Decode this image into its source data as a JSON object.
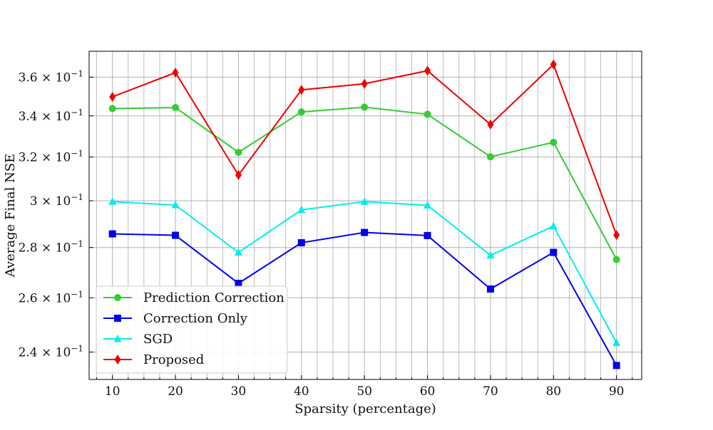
{
  "chart_data": {
    "type": "line",
    "title": "",
    "xlabel": "Sparsity (percentage)",
    "ylabel": "Average Final NSE",
    "x": [
      10,
      20,
      30,
      40,
      50,
      60,
      70,
      80,
      90
    ],
    "xlim": [
      6.3,
      94.0
    ],
    "ylim": [
      0.2305,
      0.374
    ],
    "yscale": "log",
    "grid": true,
    "legend_position": "lower-left",
    "x_ticks": [
      "10",
      "20",
      "30",
      "40",
      "50",
      "60",
      "70",
      "80",
      "90"
    ],
    "y_ticks": [
      {
        "value": 0.24,
        "mantissa": "2.4",
        "exponent": "−1"
      },
      {
        "value": 0.26,
        "mantissa": "2.6",
        "exponent": "−1"
      },
      {
        "value": 0.28,
        "mantissa": "2.8",
        "exponent": "−1"
      },
      {
        "value": 0.3,
        "mantissa": "3",
        "exponent": "−1"
      },
      {
        "value": 0.32,
        "mantissa": "3.2",
        "exponent": "−1"
      },
      {
        "value": 0.34,
        "mantissa": "3.4",
        "exponent": "−1"
      },
      {
        "value": 0.36,
        "mantissa": "3.6",
        "exponent": "−1"
      }
    ],
    "series": [
      {
        "name": "Prediction Correction",
        "color": "#33cc33",
        "marker": "circle",
        "values": [
          0.3437,
          0.3442,
          0.3222,
          0.342,
          0.3444,
          0.3408,
          0.3201,
          0.327,
          0.2751
        ]
      },
      {
        "name": "Correction Only",
        "color": "#0000ee",
        "marker": "square",
        "values": [
          0.2857,
          0.2851,
          0.2656,
          0.282,
          0.2863,
          0.285,
          0.2634,
          0.278,
          0.2353
        ]
      },
      {
        "name": "SGD",
        "color": "#00eeee",
        "marker": "triangle",
        "values": [
          0.2996,
          0.2981,
          0.278,
          0.296,
          0.2996,
          0.298,
          0.2768,
          0.289,
          0.2433
        ]
      },
      {
        "name": "Proposed",
        "color": "#ee0000",
        "marker": "diamond",
        "values": [
          0.3497,
          0.3624,
          0.3116,
          0.3533,
          0.3565,
          0.3634,
          0.3357,
          0.3668,
          0.2852
        ]
      }
    ]
  }
}
